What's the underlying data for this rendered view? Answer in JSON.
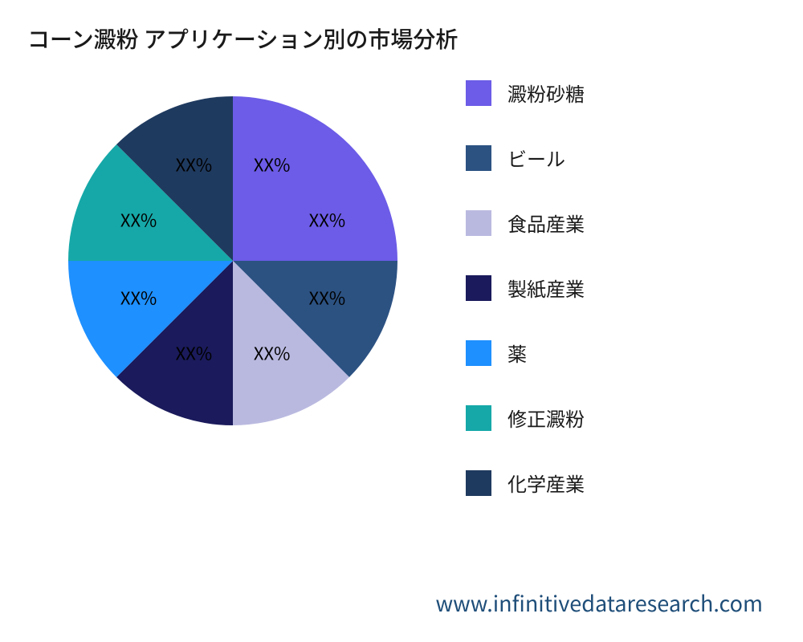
{
  "title": "コーン澱粉 アプリケーション別の市場分析",
  "watermark": "www.infinitivedataresearch.com",
  "chart": {
    "type": "pie",
    "background_color": "#ffffff",
    "label_placeholder": "XX%",
    "label_fontsize": 22,
    "label_color": "#000000",
    "title_fontsize": 28,
    "title_color": "#1a1a1a",
    "legend_fontsize": 24,
    "legend_swatch_size": 32,
    "watermark_color": "#1f4e79",
    "watermark_fontsize": 27,
    "slices": [
      {
        "name": "澱粉砂糖",
        "value": 25,
        "color": "#6c5ce7",
        "label": "XX%",
        "is_double": true
      },
      {
        "name": "ビール",
        "value": 12.5,
        "color": "#2c5282",
        "label": "XX%"
      },
      {
        "name": "食品産業",
        "value": 12.5,
        "color": "#b9b9e0",
        "label": "XX%"
      },
      {
        "name": "製紙産業",
        "value": 12.5,
        "color": "#1a1a5c",
        "label": "XX%"
      },
      {
        "name": "薬",
        "value": 12.5,
        "color": "#1e90ff",
        "label": "XX%"
      },
      {
        "name": "修正澱粉",
        "value": 12.5,
        "color": "#16a8a8",
        "label": "XX%"
      },
      {
        "name": "化学産業",
        "value": 12.5,
        "color": "#1f3a5f",
        "label": "XX%"
      }
    ],
    "legend": [
      {
        "label": "澱粉砂糖",
        "color": "#6c5ce7"
      },
      {
        "label": "ビール",
        "color": "#2c5282"
      },
      {
        "label": "食品産業",
        "color": "#b9b9e0"
      },
      {
        "label": "製紙産業",
        "color": "#1a1a5c"
      },
      {
        "label": "薬",
        "color": "#1e90ff"
      },
      {
        "label": "修正澱粉",
        "color": "#16a8a8"
      },
      {
        "label": "化学産業",
        "color": "#1f3a5f"
      }
    ]
  }
}
